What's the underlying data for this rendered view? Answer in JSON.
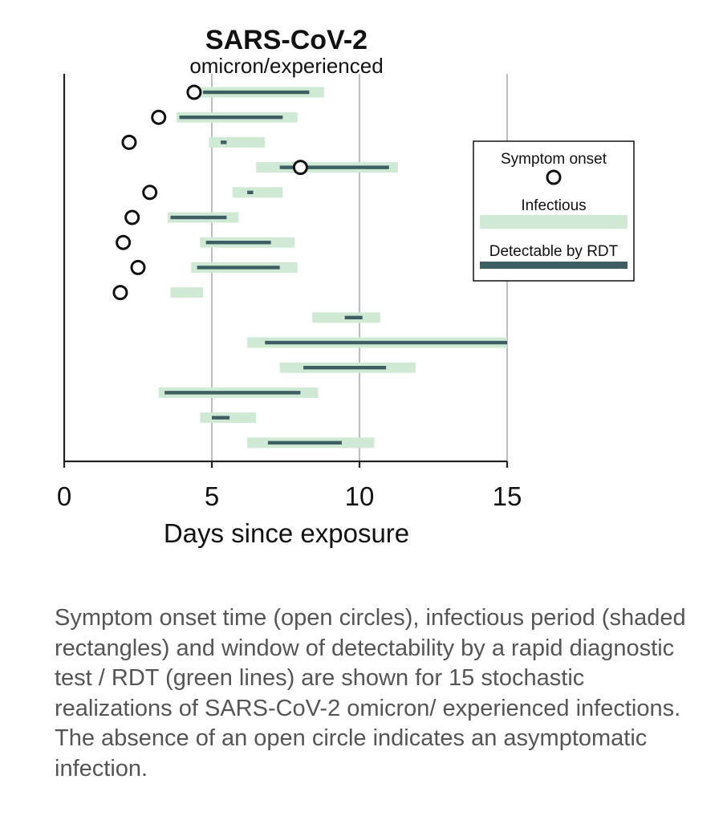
{
  "chart_data": {
    "type": "gantt",
    "title": "SARS-CoV-2",
    "subtitle": "omicron/experienced",
    "xlabel": "Days since exposure",
    "xlim": [
      0,
      15
    ],
    "xticks": [
      "0",
      "5",
      "10",
      "15"
    ],
    "xtick_values": [
      0,
      5,
      10,
      15
    ],
    "grid": true,
    "legend": {
      "position": "right",
      "items": [
        "Symptom onset",
        "Infectious",
        "Detectable by RDT"
      ]
    },
    "colors": {
      "infectious": "#cfe9d5",
      "rdt": "#3d5f63",
      "onset": "#111111",
      "axis": "#222222",
      "grid": "#999999"
    },
    "rows": [
      {
        "onset": 4.4,
        "infectious": [
          4.6,
          8.8
        ],
        "rdt": [
          4.7,
          8.3
        ]
      },
      {
        "onset": 3.2,
        "infectious": [
          3.8,
          7.9
        ],
        "rdt": [
          3.9,
          7.4
        ]
      },
      {
        "onset": 2.2,
        "infectious": [
          4.9,
          6.8
        ],
        "rdt": [
          5.3,
          5.5
        ]
      },
      {
        "onset": 8.0,
        "infectious": [
          6.5,
          11.3
        ],
        "rdt": [
          7.3,
          11.0
        ]
      },
      {
        "onset": 2.9,
        "infectious": [
          5.7,
          7.4
        ],
        "rdt": [
          6.2,
          6.4
        ]
      },
      {
        "onset": 2.3,
        "infectious": [
          3.5,
          5.9
        ],
        "rdt": [
          3.6,
          5.5
        ]
      },
      {
        "onset": 2.0,
        "infectious": [
          4.6,
          7.8
        ],
        "rdt": [
          4.8,
          7.0
        ]
      },
      {
        "onset": 2.5,
        "infectious": [
          4.3,
          7.9
        ],
        "rdt": [
          4.5,
          7.3
        ]
      },
      {
        "onset": 1.9,
        "infectious": [
          3.6,
          4.7
        ],
        "rdt": null
      },
      {
        "onset": null,
        "infectious": [
          8.4,
          10.7
        ],
        "rdt": [
          9.5,
          10.1
        ]
      },
      {
        "onset": null,
        "infectious": [
          6.2,
          15.0
        ],
        "rdt": [
          6.8,
          15.0
        ]
      },
      {
        "onset": null,
        "infectious": [
          7.3,
          11.9
        ],
        "rdt": [
          8.1,
          10.9
        ]
      },
      {
        "onset": null,
        "infectious": [
          3.2,
          8.6
        ],
        "rdt": [
          3.4,
          8.0
        ]
      },
      {
        "onset": null,
        "infectious": [
          4.6,
          6.5
        ],
        "rdt": [
          5.0,
          5.6
        ]
      },
      {
        "onset": null,
        "infectious": [
          6.2,
          10.5
        ],
        "rdt": [
          6.9,
          9.4
        ]
      }
    ]
  },
  "caption": "Symptom onset time (open circles), infectious period (shaded rectangles) and window of detectability by a rapid diagnostic test / RDT (green lines) are shown for 15 stochastic realizations of SARS-CoV-2 omicron/ experienced infections. The absence of an open circle indicates an asymptomatic infection."
}
